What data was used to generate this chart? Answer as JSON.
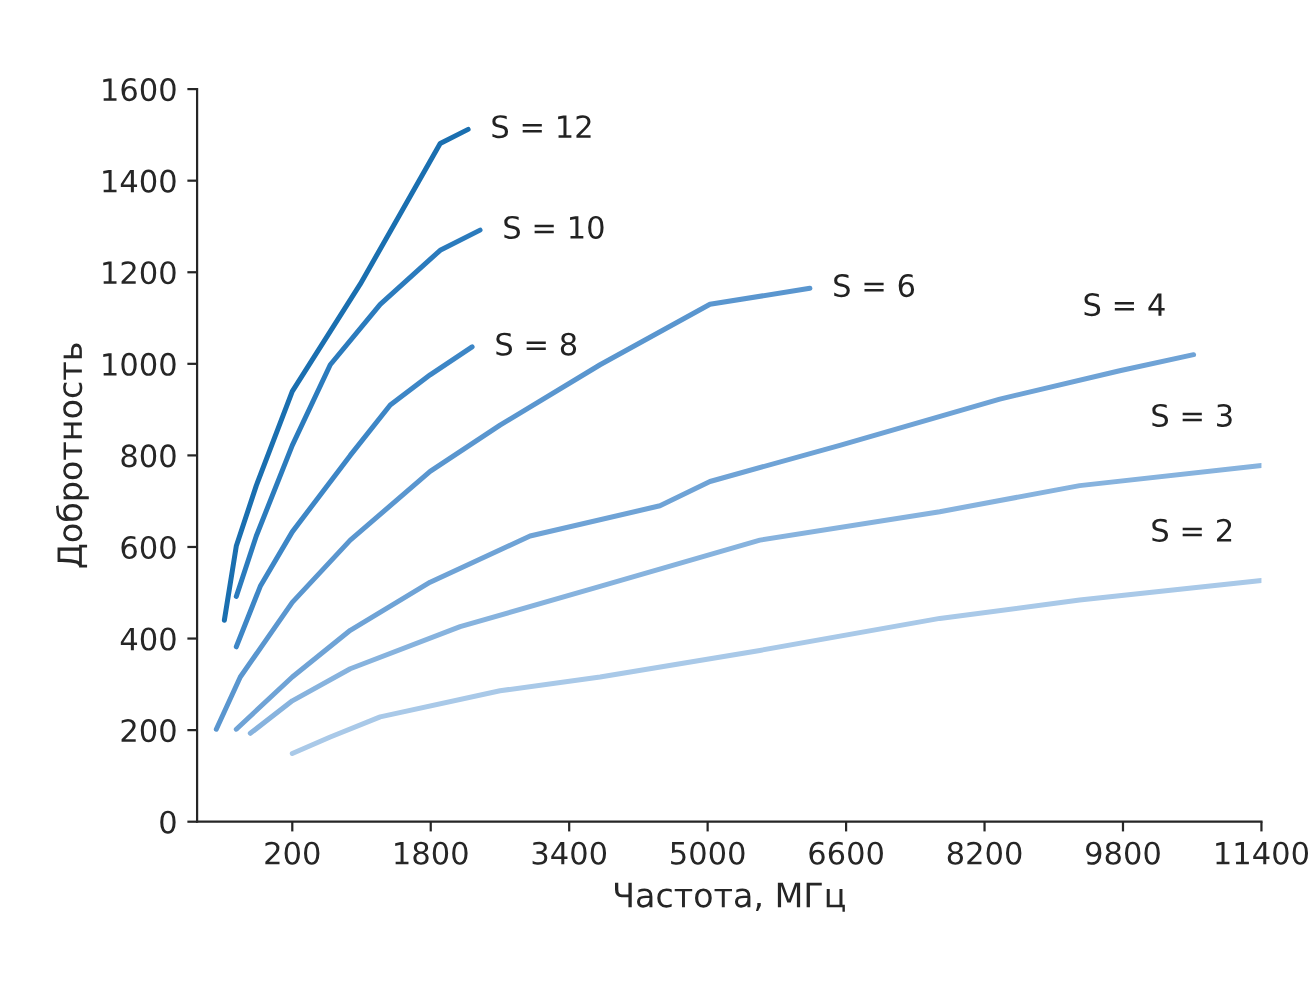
{
  "chart_data": {
    "type": "line",
    "xlabel": "Частота, МГц",
    "ylabel": "Добротность",
    "xlim": [
      -900,
      11400
    ],
    "xticks": [
      200,
      1800,
      3400,
      5000,
      6600,
      8200,
      9800,
      11400
    ],
    "ylim": [
      0,
      1600
    ],
    "yticks": [
      0,
      200,
      400,
      600,
      800,
      1000,
      1200,
      1400,
      1600
    ],
    "grid": false,
    "legend": false,
    "marker": "none",
    "line_style": "solid",
    "series": [
      {
        "name": "S = 12",
        "color": "#1a6fb0",
        "x": [
          -585,
          -447,
          -216,
          200,
          985,
          1447,
          1909,
          2232
        ],
        "values": [
          440,
          602,
          734,
          940,
          1174,
          1327,
          1481,
          1512
        ]
      },
      {
        "name": "S = 10",
        "color": "#2b7bbd",
        "x": [
          -447,
          -216,
          200,
          639,
          1216,
          1909,
          2370
        ],
        "values": [
          492,
          624,
          822,
          998,
          1130,
          1248,
          1292
        ]
      },
      {
        "name": "S = 8",
        "color": "#3d86c6",
        "x": [
          -447,
          -170,
          200,
          870,
          1332,
          1793,
          2278
        ],
        "values": [
          382,
          514,
          633,
          800,
          910,
          976,
          1037
        ]
      },
      {
        "name": "S = 6",
        "color": "#5a96cf",
        "x": [
          -678,
          -401,
          200,
          870,
          1793,
          2601,
          3757,
          5027,
          6182
        ],
        "values": [
          202,
          316,
          479,
          615,
          765,
          866,
          998,
          1130,
          1165
        ]
      },
      {
        "name": "S = 4",
        "color": "#6fa3d6",
        "x": [
          -447,
          200,
          870,
          1793,
          2948,
          4449,
          5027,
          6528,
          8376,
          9762,
          10616
        ],
        "values": [
          202,
          316,
          418,
          523,
          624,
          690,
          743,
          822,
          923,
          985,
          1020
        ]
      },
      {
        "name": "S = 3",
        "color": "#87b3de",
        "x": [
          -285,
          200,
          870,
          2140,
          3757,
          5604,
          7683,
          9299,
          11400
        ],
        "values": [
          193,
          264,
          334,
          426,
          514,
          615,
          677,
          734,
          778
        ]
      },
      {
        "name": "S = 2",
        "color": "#a9c9e8",
        "x": [
          200,
          639,
          1216,
          2601,
          3757,
          5604,
          7683,
          9299,
          11400
        ],
        "values": [
          149,
          185,
          229,
          286,
          316,
          374,
          444,
          484,
          527
        ]
      }
    ]
  }
}
